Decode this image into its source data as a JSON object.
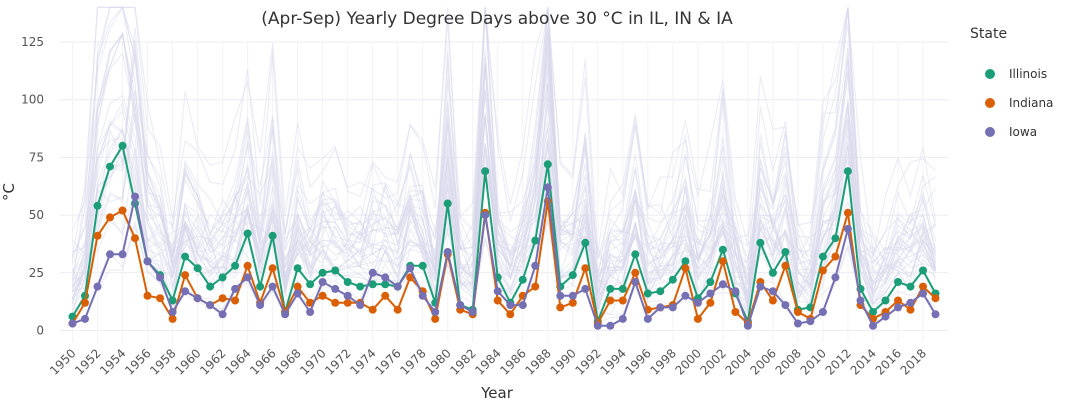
{
  "chart_data": {
    "type": "line",
    "title": "(Apr-Sep)  Yearly Degree Days above 30 °C in IL, IN & IA",
    "xlabel": "Year",
    "ylabel": "°C",
    "xlim": [
      1949,
      2020
    ],
    "ylim": [
      -5,
      125
    ],
    "yticks": [
      0,
      25,
      50,
      75,
      100,
      125
    ],
    "xticks": [
      1950,
      1952,
      1954,
      1956,
      1958,
      1960,
      1962,
      1964,
      1966,
      1968,
      1970,
      1972,
      1974,
      1976,
      1978,
      1980,
      1982,
      1984,
      1986,
      1988,
      1990,
      1992,
      1994,
      1996,
      1998,
      2000,
      2002,
      2004,
      2006,
      2008,
      2010,
      2012,
      2014,
      2016,
      2018
    ],
    "grid": true,
    "legend": {
      "title": "State",
      "position": "right"
    },
    "background_lines": {
      "description_color": "#dcdcec",
      "opacity": 0.5
    },
    "x": [
      1950,
      1951,
      1952,
      1953,
      1954,
      1955,
      1956,
      1957,
      1958,
      1959,
      1960,
      1961,
      1962,
      1963,
      1964,
      1965,
      1966,
      1967,
      1968,
      1969,
      1970,
      1971,
      1972,
      1973,
      1974,
      1975,
      1976,
      1977,
      1978,
      1979,
      1980,
      1981,
      1982,
      1983,
      1984,
      1985,
      1986,
      1987,
      1988,
      1989,
      1990,
      1991,
      1992,
      1993,
      1994,
      1995,
      1996,
      1997,
      1998,
      1999,
      2000,
      2001,
      2002,
      2003,
      2004,
      2005,
      2006,
      2007,
      2008,
      2009,
      2010,
      2011,
      2012,
      2013,
      2014,
      2015,
      2016,
      2017,
      2018,
      2019
    ],
    "series": [
      {
        "name": "Illinois",
        "color": "#1b9e77",
        "values": [
          6,
          15,
          54,
          71,
          80,
          55,
          30,
          24,
          13,
          32,
          27,
          19,
          23,
          28,
          42,
          19,
          41,
          8,
          27,
          20,
          25,
          26,
          21,
          19,
          20,
          20,
          19,
          28,
          28,
          12,
          55,
          11,
          9,
          69,
          23,
          12,
          22,
          39,
          72,
          19,
          24,
          38,
          4,
          18,
          18,
          33,
          16,
          17,
          22,
          30,
          14,
          21,
          35,
          16,
          4,
          38,
          25,
          34,
          9,
          10,
          32,
          40,
          69,
          18,
          8,
          13,
          21,
          19,
          26,
          16
        ]
      },
      {
        "name": "Indiana",
        "color": "#d95f02",
        "values": [
          3,
          12,
          41,
          49,
          52,
          40,
          15,
          14,
          5,
          24,
          14,
          11,
          14,
          13,
          28,
          12,
          27,
          8,
          19,
          12,
          15,
          12,
          12,
          12,
          9,
          15,
          9,
          23,
          17,
          5,
          33,
          9,
          7,
          51,
          13,
          7,
          15,
          19,
          56,
          10,
          12,
          27,
          3,
          13,
          13,
          25,
          9,
          10,
          11,
          27,
          5,
          12,
          30,
          8,
          3,
          21,
          13,
          28,
          8,
          5,
          26,
          32,
          51,
          11,
          5,
          8,
          13,
          9,
          19,
          14
        ]
      },
      {
        "name": "Iowa",
        "color": "#7570b3",
        "values": [
          3,
          5,
          19,
          33,
          33,
          58,
          30,
          23,
          8,
          17,
          14,
          11,
          7,
          18,
          23,
          11,
          19,
          7,
          16,
          8,
          21,
          18,
          15,
          11,
          25,
          23,
          19,
          27,
          15,
          8,
          34,
          11,
          8,
          50,
          17,
          11,
          11,
          28,
          62,
          15,
          15,
          18,
          2,
          2,
          5,
          21,
          5,
          10,
          10,
          15,
          12,
          16,
          20,
          17,
          2,
          19,
          17,
          11,
          3,
          4,
          8,
          23,
          44,
          13,
          2,
          6,
          10,
          12,
          16,
          7
        ]
      }
    ]
  }
}
